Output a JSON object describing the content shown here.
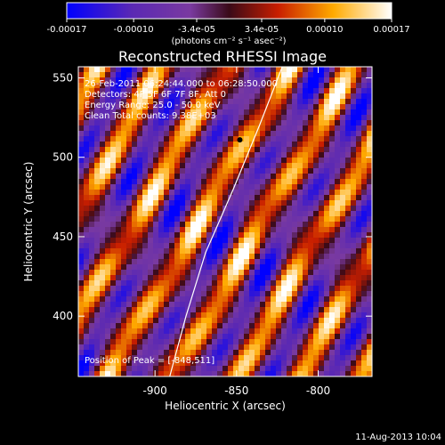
{
  "colorbar": {
    "tick_labels": [
      "-0.00017",
      "-0.00010",
      "-3.4e-05",
      "3.4e-05",
      "0.00010",
      "0.00017"
    ],
    "unit_label": "(photons cm⁻² s⁻¹ asec⁻²)",
    "range": [
      -0.00017,
      0.00017
    ]
  },
  "chart_data": {
    "type": "heatmap",
    "title": "Reconstructed RHESSI Image",
    "xlabel": "Heliocentric X (arcsec)",
    "ylabel": "Heliocentric Y (arcsec)",
    "xlim": [
      -947,
      -767
    ],
    "ylim": [
      362,
      557
    ],
    "x_ticks": [
      -900,
      -850,
      -800
    ],
    "y_ticks": [
      400,
      450,
      500,
      550
    ],
    "x_tick_labels": [
      "-900",
      "-850",
      "-800"
    ],
    "y_tick_labels": [
      "400",
      "450",
      "500",
      "550"
    ],
    "annotations": [
      "26-Feb-2011 06:24:44.000 to 06:28:50.000",
      "Detectors: 4F 5F 6F 7F 8F, Att 0",
      "Energy Range: 25.0 - 50.0 keV",
      "Clean    Total counts: 9.38E+03"
    ],
    "peak_label": "Position of Peak = [-848,511]",
    "peak": [
      -848,
      511
    ],
    "limb_curve": [
      [
        -891,
        362
      ],
      [
        -881,
        400
      ],
      [
        -869,
        440
      ],
      [
        -852,
        480
      ],
      [
        -836,
        520
      ],
      [
        -822,
        557
      ]
    ],
    "grid": false,
    "colormap": "blue-purple-red-yellow-white"
  },
  "footer": {
    "timestamp": "11-Aug-2013 10:04"
  }
}
